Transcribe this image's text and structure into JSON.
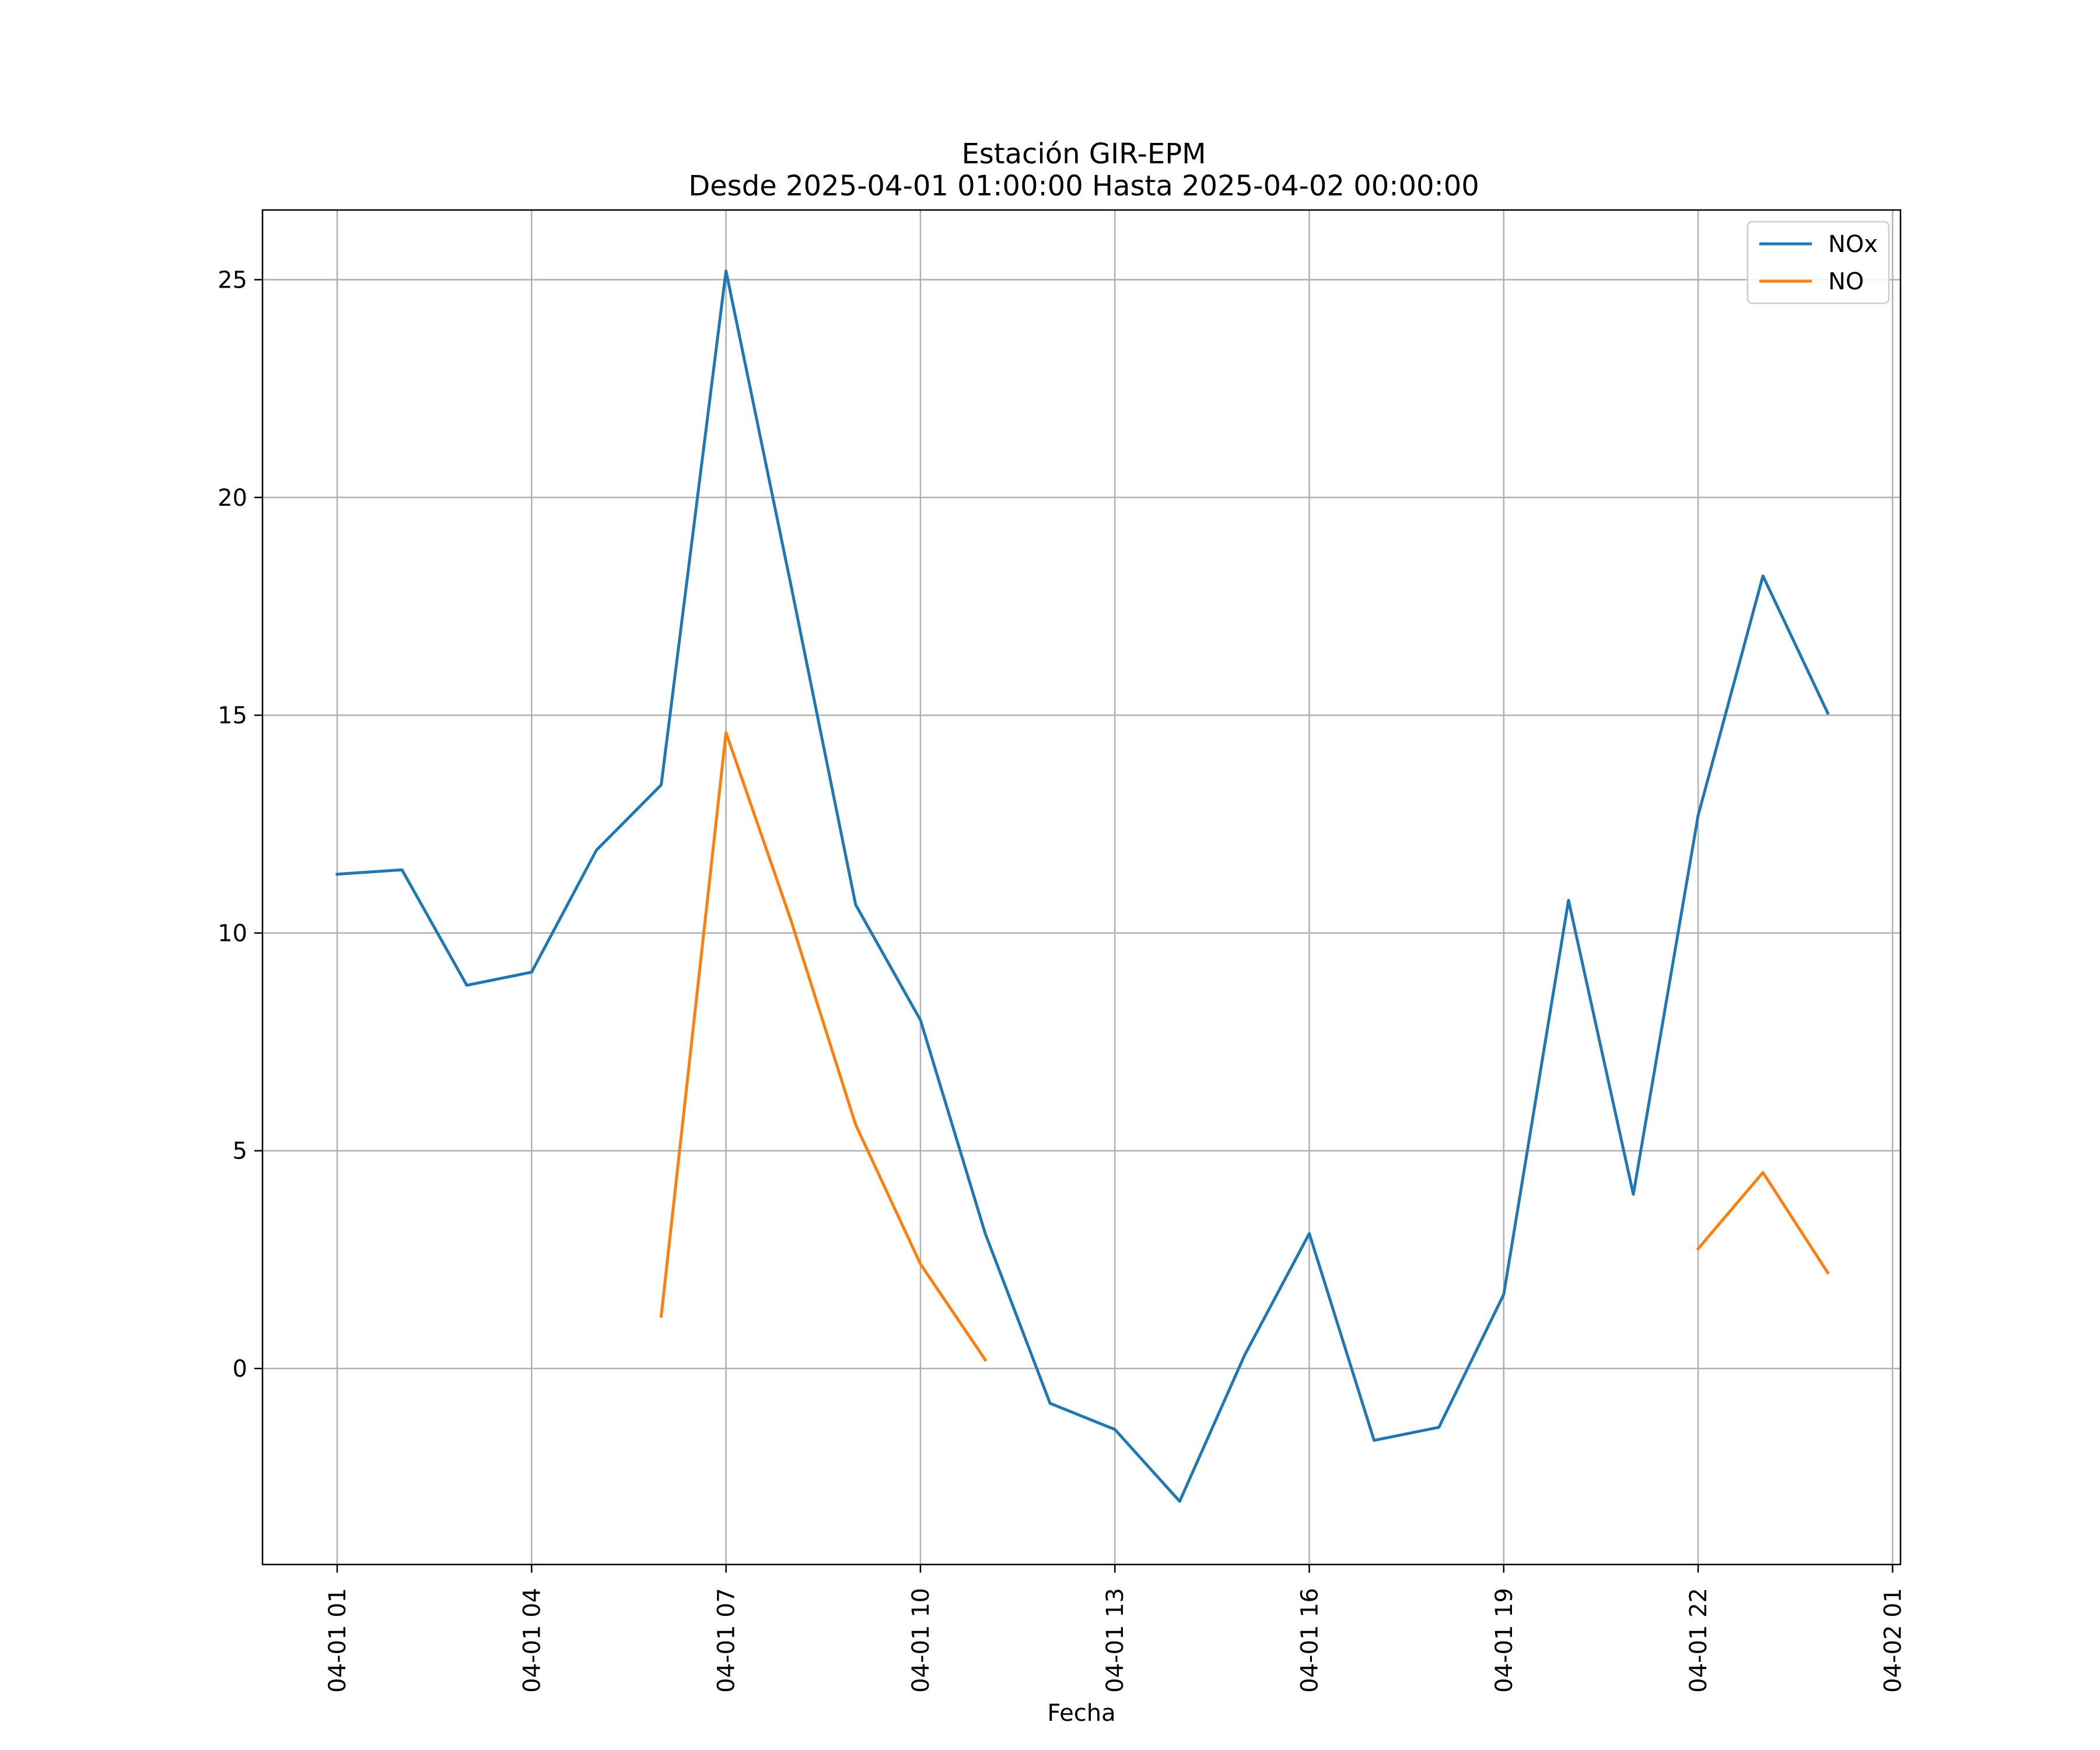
{
  "chart_data": {
    "type": "line",
    "title": "Estación GIR-EPM",
    "subtitle": "Desde 2025-04-01 01:00:00 Hasta 2025-04-02 00:00:00",
    "xlabel": "Fecha",
    "ylabel": "",
    "x": [
      "04-01 01",
      "04-01 02",
      "04-01 03",
      "04-01 04",
      "04-01 05",
      "04-01 06",
      "04-01 07",
      "04-01 08",
      "04-01 09",
      "04-01 10",
      "04-01 11",
      "04-01 12",
      "04-01 13",
      "04-01 14",
      "04-01 15",
      "04-01 16",
      "04-01 17",
      "04-01 18",
      "04-01 19",
      "04-01 20",
      "04-01 21",
      "04-01 22",
      "04-01 23",
      "04-02 00"
    ],
    "x_ticks": [
      "04-01 01",
      "04-01 04",
      "04-01 07",
      "04-01 10",
      "04-01 13",
      "04-01 16",
      "04-01 19",
      "04-01 22",
      "04-02 01"
    ],
    "y_ticks": [
      0,
      5,
      10,
      15,
      20,
      25
    ],
    "ylim": [
      -4.5,
      26.6
    ],
    "grid": true,
    "legend_position": "top-right",
    "series": [
      {
        "name": "NOx",
        "color": "#1f77b4",
        "values": [
          11.35,
          11.45,
          8.8,
          9.1,
          11.9,
          13.4,
          25.2,
          18.0,
          10.65,
          8.0,
          3.1,
          -0.8,
          -1.4,
          -3.05,
          0.3,
          3.1,
          -1.65,
          -1.35,
          1.7,
          10.75,
          4.0,
          12.7,
          18.2,
          15.05
        ]
      },
      {
        "name": "NO",
        "color": "#ff7f0e",
        "values": [
          null,
          null,
          null,
          null,
          null,
          1.2,
          14.6,
          10.3,
          5.6,
          2.4,
          0.2,
          null,
          null,
          null,
          null,
          null,
          null,
          null,
          null,
          null,
          null,
          2.75,
          4.5,
          2.2
        ]
      }
    ]
  }
}
